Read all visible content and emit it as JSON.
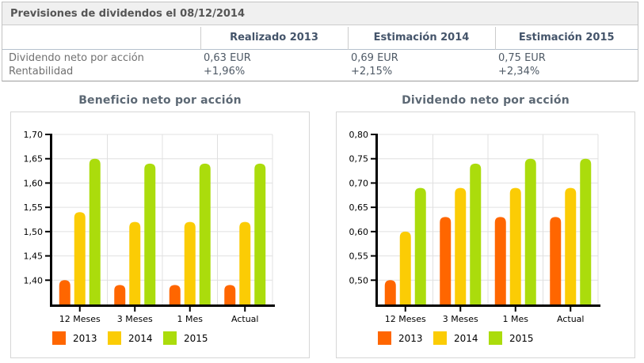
{
  "report": {
    "title": "Previsiones de dividendos el 08/12/2014",
    "table": {
      "columns": [
        "",
        "Realizado 2013",
        "Estimación 2014",
        "Estimación 2015"
      ],
      "rows": [
        {
          "label": "Dividendo neto por acción",
          "values": [
            "0,63 EUR",
            "0,69 EUR",
            "0,75 EUR"
          ]
        },
        {
          "label": "Rentabilidad",
          "values": [
            "+1,96%",
            "+2,15%",
            "+2,34%"
          ]
        }
      ]
    }
  },
  "colors": {
    "series_2013": "#ff6600",
    "series_2014": "#fbcc05",
    "series_2015": "#abdc0c",
    "positive_percent_text": "#009900",
    "grid": "#e0e0e0",
    "axis": "#000000",
    "panel_border": "#d6d6d6",
    "title_text": "#5c6874"
  },
  "chart_data": [
    {
      "type": "bar",
      "title": "Beneficio neto por acción",
      "categories": [
        "12 Meses",
        "3 Meses",
        "1 Mes",
        "Actual"
      ],
      "series": [
        {
          "name": "2013",
          "color": "#ff6600",
          "values": [
            1.4,
            1.39,
            1.39,
            1.39
          ]
        },
        {
          "name": "2014",
          "color": "#fbcc05",
          "values": [
            1.54,
            1.52,
            1.52,
            1.52
          ]
        },
        {
          "name": "2015",
          "color": "#abdc0c",
          "values": [
            1.65,
            1.64,
            1.64,
            1.64
          ]
        }
      ],
      "ylim": [
        1.35,
        1.7
      ],
      "ytick_start": 1.4,
      "ytick_step": 0.05,
      "decimal_separator": ",",
      "grid": true,
      "legend_position": "bottom"
    },
    {
      "type": "bar",
      "title": "Dividendo neto por acción",
      "categories": [
        "12 Meses",
        "3 Meses",
        "1 Mes",
        "Actual"
      ],
      "series": [
        {
          "name": "2013",
          "color": "#ff6600",
          "values": [
            0.5,
            0.63,
            0.63,
            0.63
          ]
        },
        {
          "name": "2014",
          "color": "#fbcc05",
          "values": [
            0.6,
            0.69,
            0.69,
            0.69
          ]
        },
        {
          "name": "2015",
          "color": "#abdc0c",
          "values": [
            0.69,
            0.74,
            0.75,
            0.75
          ]
        }
      ],
      "ylim": [
        0.45,
        0.8
      ],
      "ytick_start": 0.5,
      "ytick_step": 0.05,
      "decimal_separator": ",",
      "grid": true,
      "legend_position": "bottom"
    }
  ]
}
